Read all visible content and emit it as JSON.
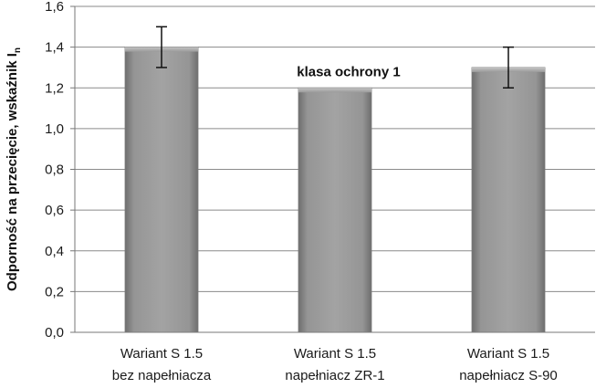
{
  "chart_data": {
    "type": "bar",
    "categories": [
      [
        "Wariant  S 1.5",
        "bez napełniacza"
      ],
      [
        "Wariant S 1.5",
        "napełniacz ZR-1"
      ],
      [
        "Wariant S 1.5",
        "napełniacz S-90"
      ]
    ],
    "values": [
      1.4,
      1.2,
      1.3
    ],
    "error_bars": [
      {
        "low": 1.3,
        "high": 1.5
      },
      null,
      {
        "low": 1.2,
        "high": 1.4
      }
    ],
    "ylabel": "Odporność na przecięcie, wskaźnik I",
    "ylabel_subscript": "n",
    "ylim": [
      0,
      1.6
    ],
    "yticks": [
      "0,0",
      "0,2",
      "0,4",
      "0,6",
      "0,8",
      "1,0",
      "1,2",
      "1,4",
      "1,6"
    ],
    "grid": true,
    "annotation": "klasa ochrony 1",
    "colors": {
      "bar": "#8c8c8c",
      "bar_light": "#b0b0b0",
      "bar_dark": "#6a6a6a",
      "grid": "#8a8a8a"
    }
  }
}
